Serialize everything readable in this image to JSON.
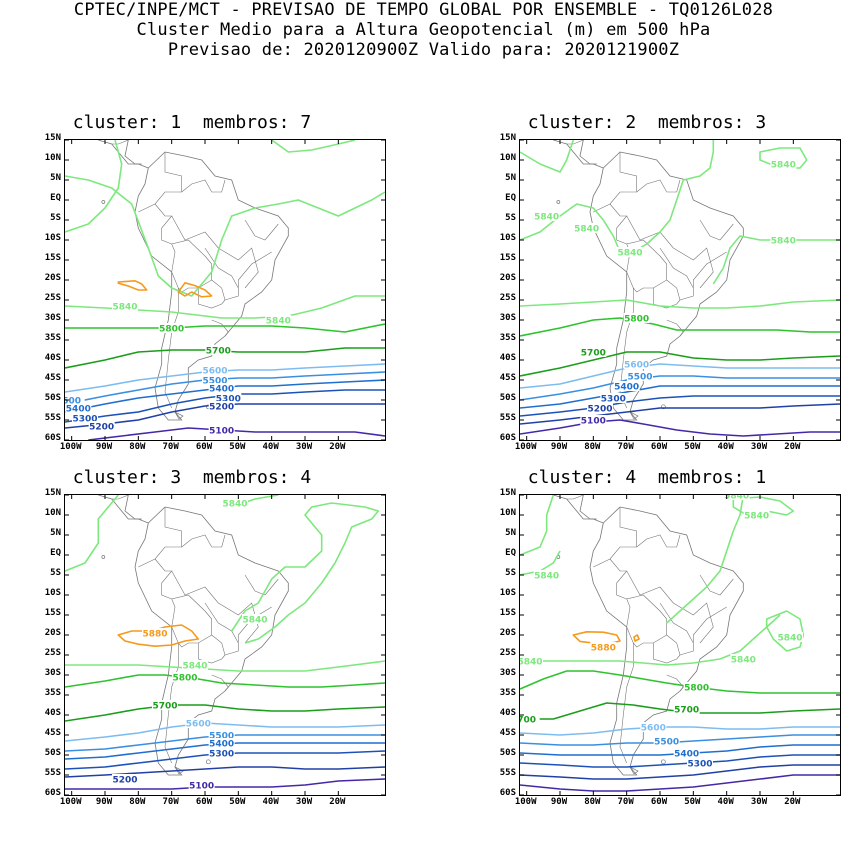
{
  "header": {
    "line1": "CPTEC/INPE/MCT - PREVISAO DE TEMPO GLOBAL POR ENSEMBLE - TQ0126L028",
    "line2": "Cluster Medio para a Altura Geopotencial (m) em 500 hPa",
    "line3": "Previsao de: 2020120900Z   Valido para: 2020121900Z"
  },
  "axes": {
    "lat_labels": [
      "15N",
      "10N",
      "5N",
      "EQ",
      "5S",
      "10S",
      "15S",
      "20S",
      "25S",
      "30S",
      "35S",
      "40S",
      "45S",
      "50S",
      "55S",
      "60S"
    ],
    "lon_labels": [
      "100W",
      "90W",
      "80W",
      "70W",
      "60W",
      "50W",
      "40W",
      "30W",
      "20W"
    ]
  },
  "colors": {
    "c5880": "#f59a1b",
    "c5840": "#7de87d",
    "c5800": "#2ec22e",
    "c5700": "#1a9d1a",
    "c5600": "#7dbcf0",
    "c5500": "#3a8fe0",
    "c5400": "#1f6ed0",
    "c5300": "#1c52b8",
    "c5200": "#2140a5",
    "c5100": "#4428a8",
    "coast": "#777777"
  },
  "panels": [
    {
      "title": "cluster: 1  membros: 7",
      "contour_labels": [
        "5840",
        "5840",
        "5800",
        "5700",
        "5600",
        "5500",
        "5400",
        "5300",
        "5200",
        "5100",
        "5400",
        "5300",
        "5200",
        "500"
      ]
    },
    {
      "title": "cluster: 2  membros: 3",
      "contour_labels": [
        "5840",
        "5840",
        "5840",
        "5840",
        "5840",
        "5800",
        "5700",
        "5600",
        "5500",
        "5400",
        "5300",
        "5200",
        "5100"
      ]
    },
    {
      "title": "cluster: 3  membros: 4",
      "contour_labels": [
        "5840",
        "5840",
        "5880",
        "5840",
        "5800",
        "5700",
        "5600",
        "5500",
        "5400",
        "5300",
        "5200",
        "5100"
      ]
    },
    {
      "title": "cluster: 4  membros: 1",
      "contour_labels": [
        "5840",
        "5840",
        "5840",
        "5840",
        "5880",
        "5840",
        "5840",
        "5800",
        "5700",
        "5600",
        "5500",
        "5400",
        "5300",
        "700"
      ]
    }
  ]
}
